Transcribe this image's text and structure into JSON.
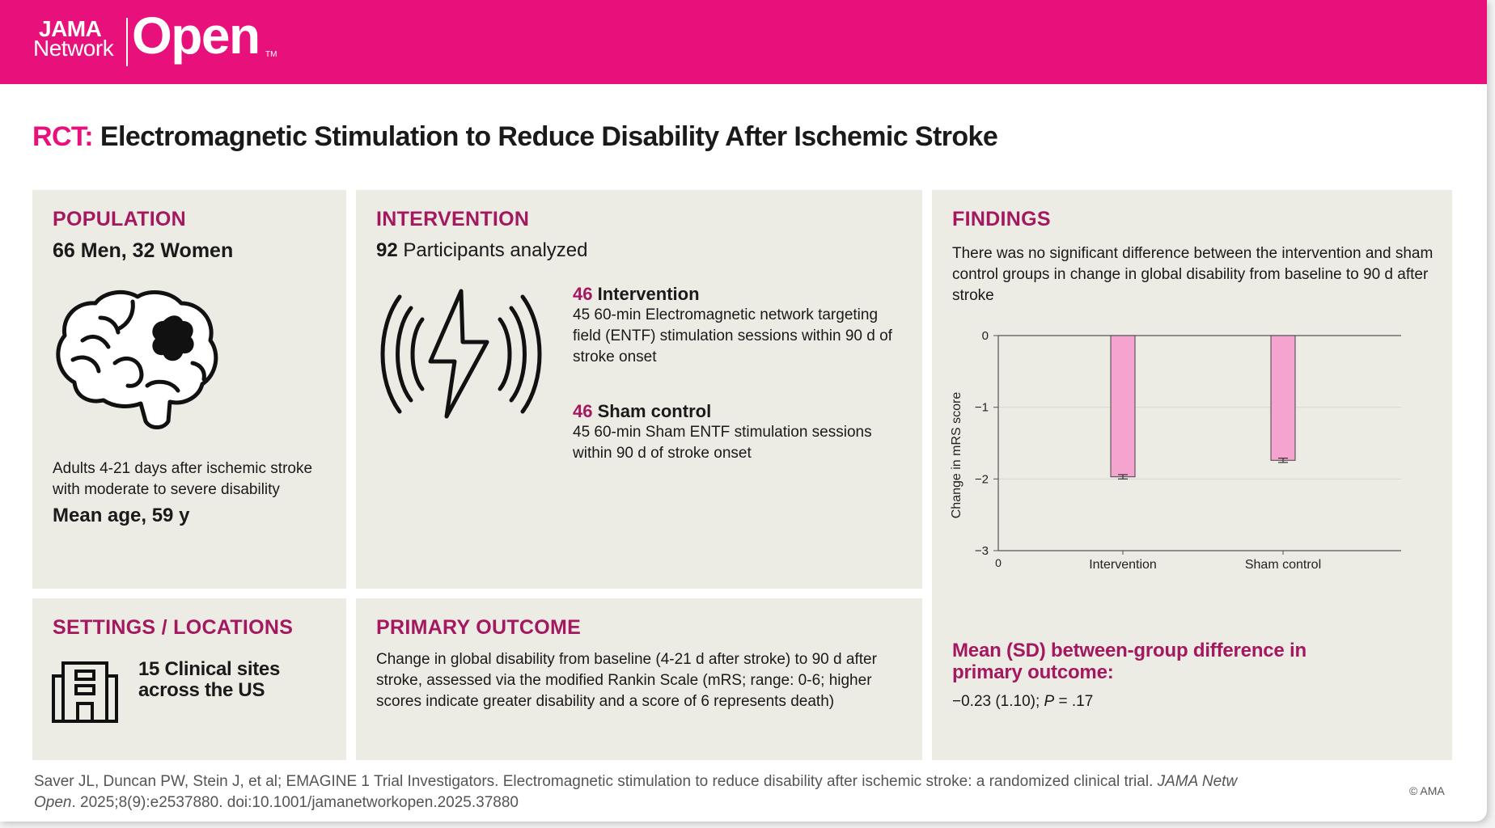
{
  "header": {
    "logo_line1": "JAMA",
    "logo_line2": "Network",
    "logo_open": "Open",
    "logo_tm": "TM",
    "brand_color": "#e8107a"
  },
  "title": {
    "prefix": "RCT:",
    "text": "Electromagnetic Stimulation to Reduce Disability After Ischemic Stroke"
  },
  "population": {
    "heading": "POPULATION",
    "count": "66 Men, 32 Women",
    "icon": "brain-icon",
    "description": "Adults 4-21 days after ischemic stroke with moderate to severe disability",
    "mean_age": "Mean age, 59 y"
  },
  "intervention": {
    "heading": "INTERVENTION",
    "participants_count": "92",
    "participants_label": "Participants analyzed",
    "icon": "electromagnetic-lightning-icon",
    "groups": [
      {
        "count": "46",
        "name": "Intervention",
        "description": "45 60-min Electromagnetic network targeting field (ENTF) stimulation sessions within 90 d of stroke onset"
      },
      {
        "count": "46",
        "name": "Sham control",
        "description": "45 60-min Sham ENTF stimulation sessions within 90 d of stroke onset"
      }
    ]
  },
  "findings": {
    "heading": "FINDINGS",
    "text": "There was no significant difference between the intervention and sham control groups in change in global disability from baseline to 90 d after stroke",
    "result_heading": "Mean (SD) between-group difference in primary outcome:",
    "result_value": "−0.23 (1.10); ",
    "result_p_label": "P",
    "result_p_value": " = .17"
  },
  "settings": {
    "heading": "SETTINGS / LOCATIONS",
    "icon": "building-icon",
    "text": "15 Clinical sites across the US"
  },
  "primary_outcome": {
    "heading": "PRIMARY OUTCOME",
    "text": "Change in global disability from baseline (4-21 d after stroke) to 90 d after stroke, assessed via the modified Rankin Scale (mRS; range: 0-6; higher scores indicate greater disability and a score of 6 represents death)"
  },
  "citation": {
    "text": "Saver JL, Duncan PW, Stein J, et al; EMAGINE 1 Trial Investigators. Electromagnetic stimulation to reduce disability after ischemic stroke: a randomized clinical trial. ",
    "journal": "JAMA Netw Open",
    "details": ". 2025;8(9):e2537880. doi:10.1001/jamanetworkopen.2025.37880",
    "copyright": "© AMA"
  },
  "chart_data": {
    "type": "bar",
    "categories": [
      "Intervention",
      "Sham control"
    ],
    "values": [
      -1.97,
      -1.74
    ],
    "error": [
      0.03,
      0.03
    ],
    "ylabel": "Change in mRS score",
    "xlabel": "",
    "ylim": [
      -3,
      0
    ],
    "yticks": [
      "0",
      "-1",
      "-2",
      "-3"
    ],
    "x_origin_label": "0",
    "bar_color": "#f5a3cf",
    "grid": true
  }
}
